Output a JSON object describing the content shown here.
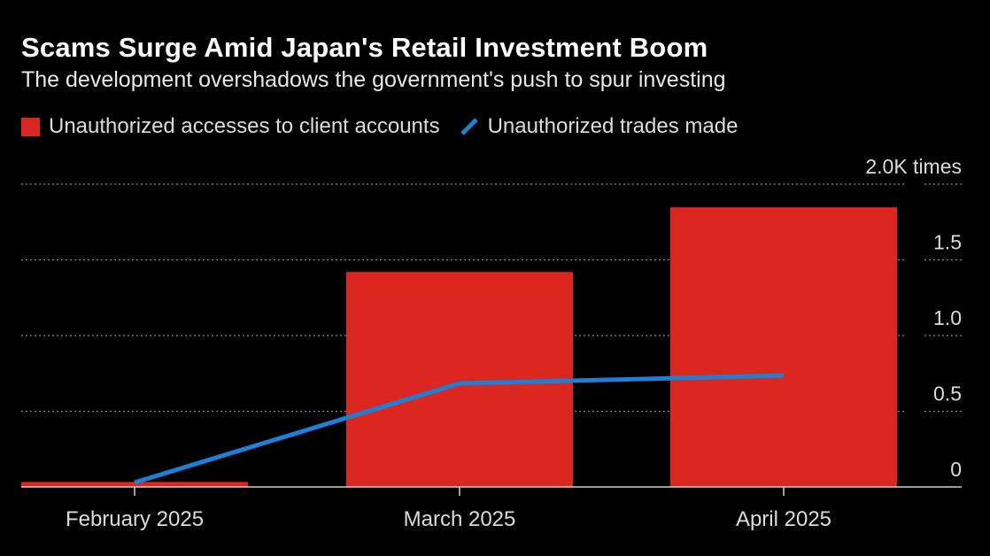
{
  "title": "Scams Surge Amid Japan's Retail Investment Boom",
  "subtitle": "The development overshadows the government's push to spur investing",
  "legend": {
    "series1": "Unauthorized accesses to client accounts",
    "series2": "Unauthorized trades made"
  },
  "colors": {
    "bar": "#dc2620",
    "line": "#1e7fd6",
    "grid": "#8a8a8a",
    "axis": "#d0d0d0"
  },
  "chart_data": {
    "type": "bar",
    "categories": [
      "February 2025",
      "March 2025",
      "April 2025"
    ],
    "series": [
      {
        "name": "Unauthorized accesses to client accounts",
        "type": "bar",
        "values": [
          33,
          1420,
          1847
        ]
      },
      {
        "name": "Unauthorized trades made",
        "type": "line",
        "values": [
          29,
          684,
          736
        ]
      }
    ],
    "y_unit": "times",
    "y_ticks": [
      {
        "value": 0,
        "label": "0"
      },
      {
        "value": 500,
        "label": "0.5"
      },
      {
        "value": 1000,
        "label": "1.0"
      },
      {
        "value": 1500,
        "label": "1.5"
      },
      {
        "value": 2000,
        "label": "2.0K times"
      }
    ],
    "ylim": [
      0,
      2000
    ],
    "y_axis_side": "right",
    "grid": "dotted-horizontal",
    "legend_position": "top-left"
  }
}
